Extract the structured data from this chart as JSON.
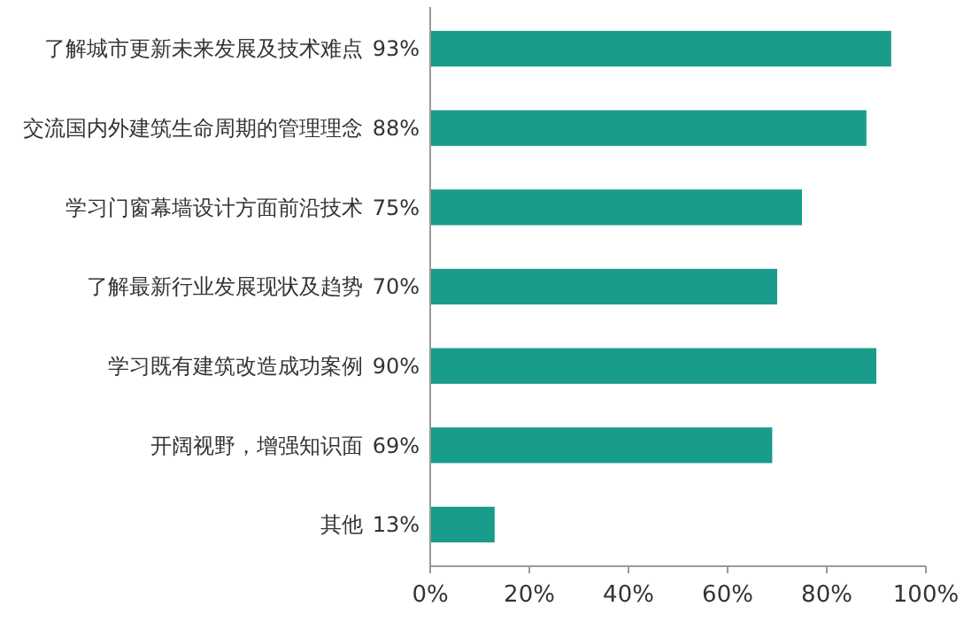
{
  "chart_data": {
    "type": "bar",
    "orientation": "horizontal",
    "categories": [
      "了解城市更新未来发展及技术难点",
      "交流国内外建筑生命周期的管理理念",
      "学习门窗幕墙设计方面前沿技术",
      "了解最新行业发展现状及趋势",
      "学习既有建筑改造成功案例",
      "开阔视野，增强知识面",
      "其他"
    ],
    "values": [
      93,
      88,
      75,
      70,
      90,
      69,
      13
    ],
    "value_labels": [
      "93%",
      "88%",
      "75%",
      "70%",
      "90%",
      "69%",
      "13%"
    ],
    "color": "#1a9c8b",
    "xlim": [
      0,
      100
    ],
    "xticks": [
      {
        "value": 0,
        "label": "0%"
      },
      {
        "value": 20,
        "label": "20%"
      },
      {
        "value": 40,
        "label": "40%"
      },
      {
        "value": 60,
        "label": "60%"
      },
      {
        "value": 80,
        "label": "80%"
      },
      {
        "value": 100,
        "label": "100%"
      }
    ],
    "grid": false
  }
}
